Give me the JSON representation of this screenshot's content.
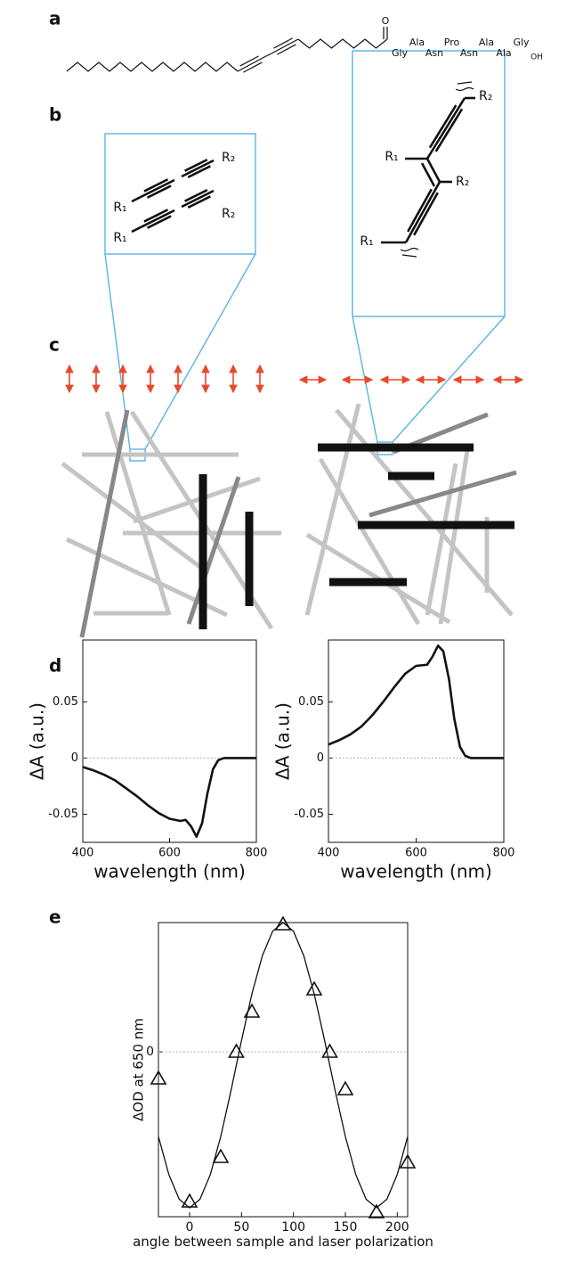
{
  "panel_labels": [
    "a",
    "b",
    "c",
    "d",
    "e"
  ],
  "panel_a": {
    "carbonyl_oxygen": "O",
    "residues": [
      "Gly",
      "Ala",
      "Asn",
      "Pro",
      "Asn",
      "Ala",
      "Ala",
      "Gly"
    ],
    "terminus": "OH"
  },
  "panel_b": {
    "left_labels": [
      "R₂",
      "R₁",
      "R₂",
      "R₁"
    ],
    "right_labels": [
      "R₂",
      "R₁",
      "R₂",
      "R₁"
    ]
  },
  "chart_data": [
    {
      "type": "line",
      "xlabel": "wavelength (nm)",
      "ylabel": "ΔA (a.u.)",
      "x": [
        400,
        425,
        450,
        475,
        500,
        525,
        550,
        575,
        600,
        625,
        637,
        650,
        662,
        675,
        687,
        700,
        712,
        725,
        750,
        775,
        800
      ],
      "series": [
        {
          "color": "#111111",
          "values": [
            -0.008,
            -0.011,
            -0.015,
            -0.02,
            -0.027,
            -0.034,
            -0.042,
            -0.049,
            -0.054,
            -0.056,
            -0.055,
            -0.061,
            -0.07,
            -0.058,
            -0.032,
            -0.01,
            -0.002,
            0,
            0,
            0,
            0
          ]
        }
      ],
      "xlim": [
        400,
        800
      ],
      "xticks": [
        400,
        600,
        800
      ],
      "ylim": [
        -0.075,
        0.105
      ],
      "yticks": [
        -0.05,
        0,
        0.05
      ],
      "hline": 0
    },
    {
      "type": "line",
      "xlabel": "wavelength (nm)",
      "ylabel": "ΔA (a.u.)",
      "x": [
        400,
        425,
        450,
        475,
        500,
        525,
        550,
        575,
        600,
        625,
        637,
        650,
        662,
        675,
        687,
        700,
        712,
        725,
        750,
        775,
        800
      ],
      "series": [
        {
          "color": "#111111",
          "values": [
            0.012,
            0.016,
            0.021,
            0.028,
            0.038,
            0.05,
            0.063,
            0.075,
            0.082,
            0.083,
            0.09,
            0.1,
            0.095,
            0.07,
            0.035,
            0.01,
            0.002,
            0,
            0,
            0,
            0
          ]
        }
      ],
      "xlim": [
        400,
        800
      ],
      "xticks": [
        400,
        600,
        800
      ],
      "ylim": [
        -0.075,
        0.105
      ],
      "yticks": [
        -0.05,
        0,
        0.05
      ],
      "hline": 0
    },
    {
      "type": "scatter",
      "xlabel": "angle between sample and laser polarization",
      "ylabel": "ΔOD at 650 nm",
      "series": [
        {
          "color": "#111111",
          "x": [
            -30,
            -20,
            -10,
            0,
            10,
            20,
            30,
            40,
            50,
            60,
            70,
            80,
            90,
            100,
            110,
            120,
            130,
            140,
            150,
            160,
            170,
            180,
            190,
            200,
            210
          ],
          "values": [
            -0.95,
            -1.376,
            -1.654,
            -1.75,
            -1.654,
            -1.376,
            -0.95,
            -0.428,
            0.128,
            0.65,
            1.076,
            1.354,
            1.45,
            1.354,
            1.076,
            0.65,
            0.128,
            -0.428,
            -0.95,
            -1.376,
            -1.654,
            -1.75,
            -1.654,
            -1.376,
            -0.95
          ]
        },
        {
          "color": "#111111",
          "marker": "triangle",
          "x": [
            -30,
            0,
            30,
            45,
            60,
            90,
            120,
            135,
            150,
            180,
            210
          ],
          "values": [
            -0.3,
            -1.68,
            -1.18,
            0,
            0.45,
            1.43,
            0.7,
            0,
            -0.42,
            -1.8,
            -1.24
          ]
        }
      ],
      "xlim": [
        -30,
        210
      ],
      "xticks": [
        0,
        50,
        100,
        150,
        200
      ],
      "ylim": [
        -1.85,
        1.45
      ],
      "yticks": [
        0
      ],
      "hline": 0
    }
  ]
}
